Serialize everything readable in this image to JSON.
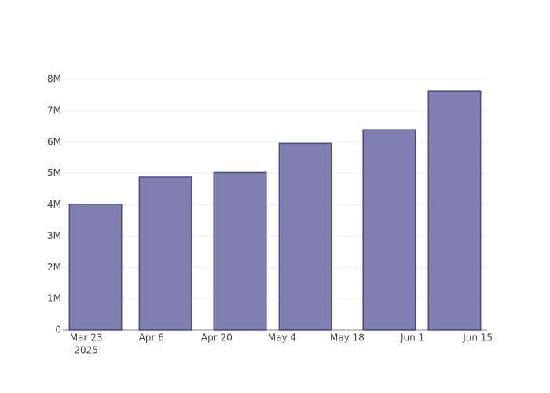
{
  "chart_data": {
    "type": "bar",
    "x": [
      "2025-03-25",
      "2025-04-09",
      "2025-04-25",
      "2025-05-09",
      "2025-05-27",
      "2025-06-10"
    ],
    "values": [
      4020000,
      4890000,
      5030000,
      5960000,
      6390000,
      7620000
    ],
    "color": "#7f7fb0",
    "edge_color": "#4a4a88",
    "xlim": [
      "2025-03-18",
      "2025-06-17"
    ],
    "xticks": [
      {
        "value": "2025-03-23",
        "label": "Mar 23"
      },
      {
        "value": "2025-04-06",
        "label": "Apr 6"
      },
      {
        "value": "2025-04-20",
        "label": "Apr 20"
      },
      {
        "value": "2025-05-04",
        "label": "May 4"
      },
      {
        "value": "2025-05-18",
        "label": "May 18"
      },
      {
        "value": "2025-06-01",
        "label": "Jun 1"
      },
      {
        "value": "2025-06-15",
        "label": "Jun 15"
      }
    ],
    "x_year_label": "2025",
    "ylim": [
      0,
      8000000
    ],
    "yticks": [
      0,
      {
        "value": 1000000,
        "label": "1M"
      },
      {
        "value": 2000000,
        "label": "2M"
      },
      {
        "value": 3000000,
        "label": "3M"
      },
      {
        "value": 4000000,
        "label": "4M"
      },
      {
        "value": 5000000,
        "label": "5M"
      },
      {
        "value": 6000000,
        "label": "6M"
      },
      {
        "value": 7000000,
        "label": "7M"
      },
      {
        "value": 8000000,
        "label": "8M"
      }
    ],
    "grid": true
  }
}
